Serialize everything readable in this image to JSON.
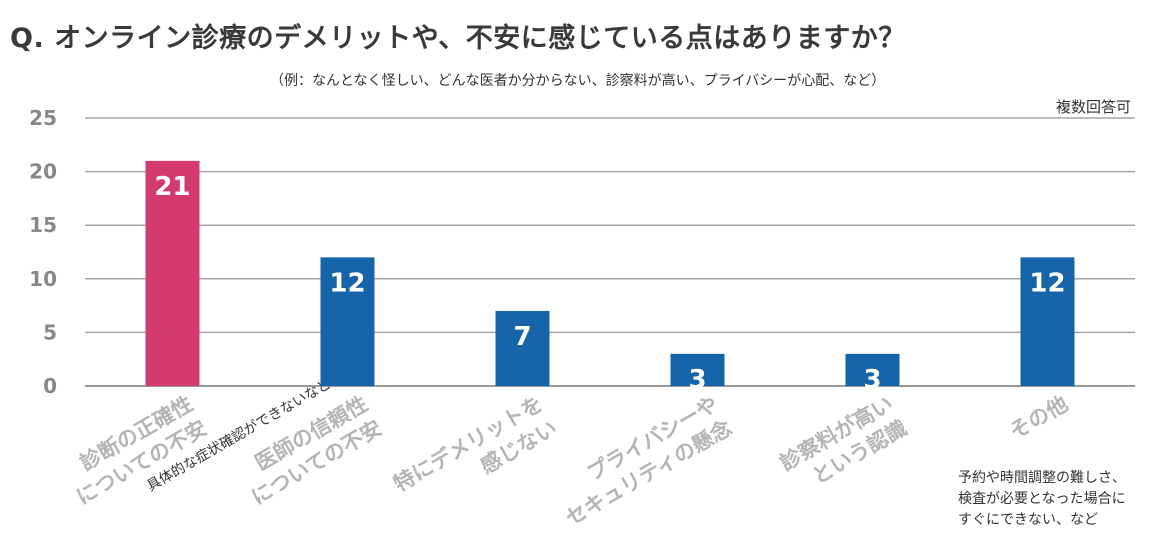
{
  "title": "Q. オンライン診療のデメリットや、不安に感じている点はありますか？",
  "subtitle": "（例：なんとなく怪しい、どんな医者か分からない、診察料が高い、プライバシーが心配、など）",
  "note": "複数回答可",
  "chart_data": {
    "type": "bar",
    "ylim": [
      0,
      25
    ],
    "yticks": [
      0,
      5,
      10,
      15,
      20,
      25
    ],
    "categories": [
      {
        "lines": [
          "診断の正確性",
          "についての不安"
        ],
        "sub": "具体的な症状確認ができないなど"
      },
      {
        "lines": [
          "医師の信頼性",
          "についての不安"
        ]
      },
      {
        "lines": [
          "特にデメリットを",
          "感じない"
        ]
      },
      {
        "lines": [
          "プライバシーや",
          "セキュリティの懸念"
        ]
      },
      {
        "lines": [
          "診察料が高い",
          "という認識"
        ]
      },
      {
        "lines": [
          "その他"
        ]
      }
    ],
    "values": [
      21,
      12,
      7,
      3,
      3,
      12
    ],
    "bar_colors": [
      "#d33b6c",
      "#1565a8",
      "#1565a8",
      "#1565a8",
      "#1565a8",
      "#1565a8"
    ],
    "other_note": [
      "予約や時間調整の難しさ、",
      "検査が必要となった場合に",
      "すぐにできない、など"
    ]
  }
}
